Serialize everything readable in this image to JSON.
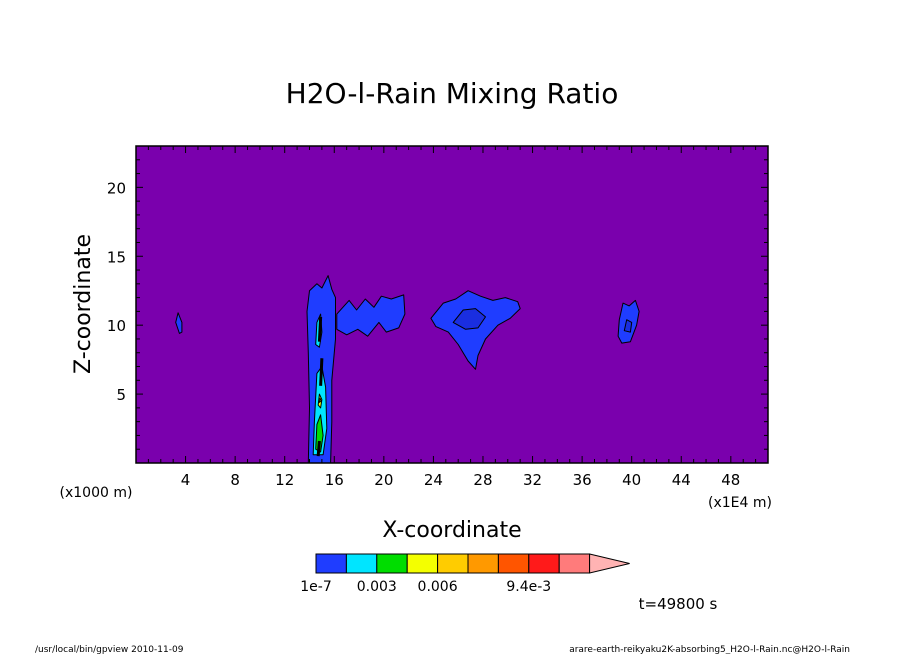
{
  "chart_data": {
    "type": "heatmap",
    "title": "H2O-l-Rain Mixing Ratio",
    "xlabel": "X-coordinate",
    "ylabel": "Z-coordinate",
    "x_unit_left": "(x1000 m)",
    "x_unit_right": "(x1E4 m)",
    "xlim": [
      0,
      51
    ],
    "ylim": [
      0,
      23
    ],
    "x_ticks": [
      {
        "v": 4,
        "label": "4"
      },
      {
        "v": 8,
        "label": "8"
      },
      {
        "v": 12,
        "label": "12"
      },
      {
        "v": 16,
        "label": "16"
      },
      {
        "v": 20,
        "label": "20"
      },
      {
        "v": 24,
        "label": "24"
      },
      {
        "v": 28,
        "label": "28"
      },
      {
        "v": 32,
        "label": "32"
      },
      {
        "v": 36,
        "label": "36"
      },
      {
        "v": 40,
        "label": "40"
      },
      {
        "v": 44,
        "label": "44"
      },
      {
        "v": 48,
        "label": "48"
      }
    ],
    "y_ticks": [
      {
        "v": 5,
        "label": "5"
      },
      {
        "v": 10,
        "label": "10"
      },
      {
        "v": 15,
        "label": "15"
      },
      {
        "v": 20,
        "label": "20"
      }
    ],
    "background_color": "#7a00ad",
    "colorbar": {
      "colors": [
        "#1f3dff",
        "#00e5ff",
        "#00dd00",
        "#f4ff00",
        "#ffcc00",
        "#ff9900",
        "#ff5500",
        "#ff1a1a",
        "#ff7b7b"
      ],
      "extend_color": "#ffb3b3",
      "labels": [
        {
          "index": 0,
          "text": "1e-7"
        },
        {
          "index": 2,
          "text": "0.003"
        },
        {
          "index": 4,
          "text": "0.006"
        },
        {
          "index": 7,
          "text": "9.4e-3"
        }
      ]
    },
    "time_label": "t=49800 s",
    "footer_left": "/usr/local/bin/gpview  2010-11-09",
    "footer_right": "arare-earth-reikyaku2K-absorbing5_H2O-l-Rain.nc@H2O-l-Rain",
    "regions": [
      {
        "name": "cell-column-main",
        "color": "#1f3dff",
        "pts": [
          [
            13.9,
            0
          ],
          [
            14.0,
            4
          ],
          [
            13.9,
            8
          ],
          [
            13.8,
            11
          ],
          [
            14.0,
            12.5
          ],
          [
            14.6,
            13.0
          ],
          [
            15.0,
            12.7
          ],
          [
            15.5,
            13.6
          ],
          [
            15.8,
            12.6
          ],
          [
            16.1,
            12.0
          ],
          [
            16.1,
            9
          ],
          [
            15.8,
            6
          ],
          [
            15.8,
            3
          ],
          [
            15.7,
            0
          ]
        ]
      },
      {
        "name": "cell-upper-anvil-left",
        "color": "#1f3dff",
        "pts": [
          [
            16.2,
            10.8
          ],
          [
            17.2,
            11.8
          ],
          [
            17.8,
            11.1
          ],
          [
            18.5,
            11.9
          ],
          [
            19.2,
            11.3
          ],
          [
            19.8,
            12.1
          ],
          [
            20.6,
            11.9
          ],
          [
            21.6,
            12.2
          ],
          [
            21.7,
            10.8
          ],
          [
            21.2,
            9.8
          ],
          [
            20.2,
            9.5
          ],
          [
            19.6,
            10.2
          ],
          [
            18.7,
            9.2
          ],
          [
            17.9,
            9.7
          ],
          [
            17.0,
            9.3
          ],
          [
            16.2,
            9.7
          ]
        ]
      },
      {
        "name": "cell-upper-anvil-middle",
        "color": "#1f3dff",
        "pts": [
          [
            23.8,
            10.5
          ],
          [
            24.8,
            11.6
          ],
          [
            25.8,
            11.9
          ],
          [
            26.8,
            12.5
          ],
          [
            27.8,
            12.1
          ],
          [
            28.8,
            11.8
          ],
          [
            29.8,
            12.0
          ],
          [
            30.8,
            11.7
          ],
          [
            31.0,
            11.2
          ],
          [
            30.2,
            10.5
          ],
          [
            29.2,
            10.0
          ],
          [
            28.2,
            9.0
          ],
          [
            27.6,
            7.8
          ],
          [
            27.4,
            6.8
          ],
          [
            26.8,
            7.4
          ],
          [
            26.0,
            8.6
          ],
          [
            25.2,
            9.5
          ],
          [
            24.2,
            9.9
          ]
        ]
      },
      {
        "name": "cell-right",
        "color": "#1f3dff",
        "pts": [
          [
            38.9,
            9.2
          ],
          [
            39.0,
            10.4
          ],
          [
            39.3,
            11.6
          ],
          [
            39.8,
            11.4
          ],
          [
            40.3,
            11.8
          ],
          [
            40.6,
            11.0
          ],
          [
            40.4,
            10.0
          ],
          [
            39.9,
            8.8
          ],
          [
            39.2,
            8.7
          ]
        ]
      },
      {
        "name": "cell-left-small",
        "color": "#1f3dff",
        "pts": [
          [
            3.2,
            10.2
          ],
          [
            3.4,
            10.9
          ],
          [
            3.7,
            10.2
          ],
          [
            3.7,
            9.5
          ],
          [
            3.5,
            9.4
          ]
        ]
      },
      {
        "name": "cell-core-cyan",
        "color": "#00e5ff",
        "pts": [
          [
            14.3,
            0.6
          ],
          [
            14.4,
            3
          ],
          [
            14.6,
            6.5
          ],
          [
            15.0,
            7.0
          ],
          [
            15.3,
            5.5
          ],
          [
            15.4,
            2.5
          ],
          [
            15.1,
            0.6
          ]
        ]
      },
      {
        "name": "cell-core-green",
        "color": "#00dd00",
        "pts": [
          [
            14.5,
            1.0
          ],
          [
            14.6,
            2.8
          ],
          [
            14.9,
            3.5
          ],
          [
            15.1,
            2.0
          ],
          [
            14.9,
            0.8
          ]
        ]
      },
      {
        "name": "cell-core-yellow",
        "color": "#f4ff00",
        "pts": [
          [
            14.7,
            4.2
          ],
          [
            14.8,
            5.0
          ],
          [
            15.0,
            4.6
          ],
          [
            14.9,
            4.0
          ]
        ]
      },
      {
        "name": "cell-core-orange",
        "color": "#ffcc00",
        "pts": [
          [
            14.8,
            4.4
          ],
          [
            14.85,
            4.7
          ],
          [
            14.95,
            4.5
          ]
        ]
      },
      {
        "name": "cell-upper-cyan",
        "color": "#00e5ff",
        "pts": [
          [
            14.5,
            8.6
          ],
          [
            14.6,
            10.2
          ],
          [
            14.9,
            10.8
          ],
          [
            15.0,
            9.5
          ],
          [
            14.8,
            8.4
          ]
        ]
      },
      {
        "name": "anvil-middle-inner",
        "color": "#1a2ee0",
        "pts": [
          [
            25.6,
            10.2
          ],
          [
            26.4,
            11.1
          ],
          [
            27.4,
            11.2
          ],
          [
            28.2,
            10.6
          ],
          [
            27.6,
            9.8
          ],
          [
            26.6,
            9.7
          ]
        ]
      },
      {
        "name": "cell-right-inner",
        "color": "#1a2ee0",
        "pts": [
          [
            39.4,
            9.6
          ],
          [
            39.6,
            10.4
          ],
          [
            40.0,
            10.2
          ],
          [
            39.9,
            9.5
          ]
        ]
      }
    ],
    "core_segments": [
      [
        [
          14.9,
          5.6
        ],
        [
          15.0,
          7.6
        ]
      ],
      [
        [
          14.8,
          8.8
        ],
        [
          14.9,
          10.6
        ]
      ],
      [
        [
          14.7,
          0.5
        ],
        [
          14.8,
          1.6
        ]
      ]
    ]
  }
}
